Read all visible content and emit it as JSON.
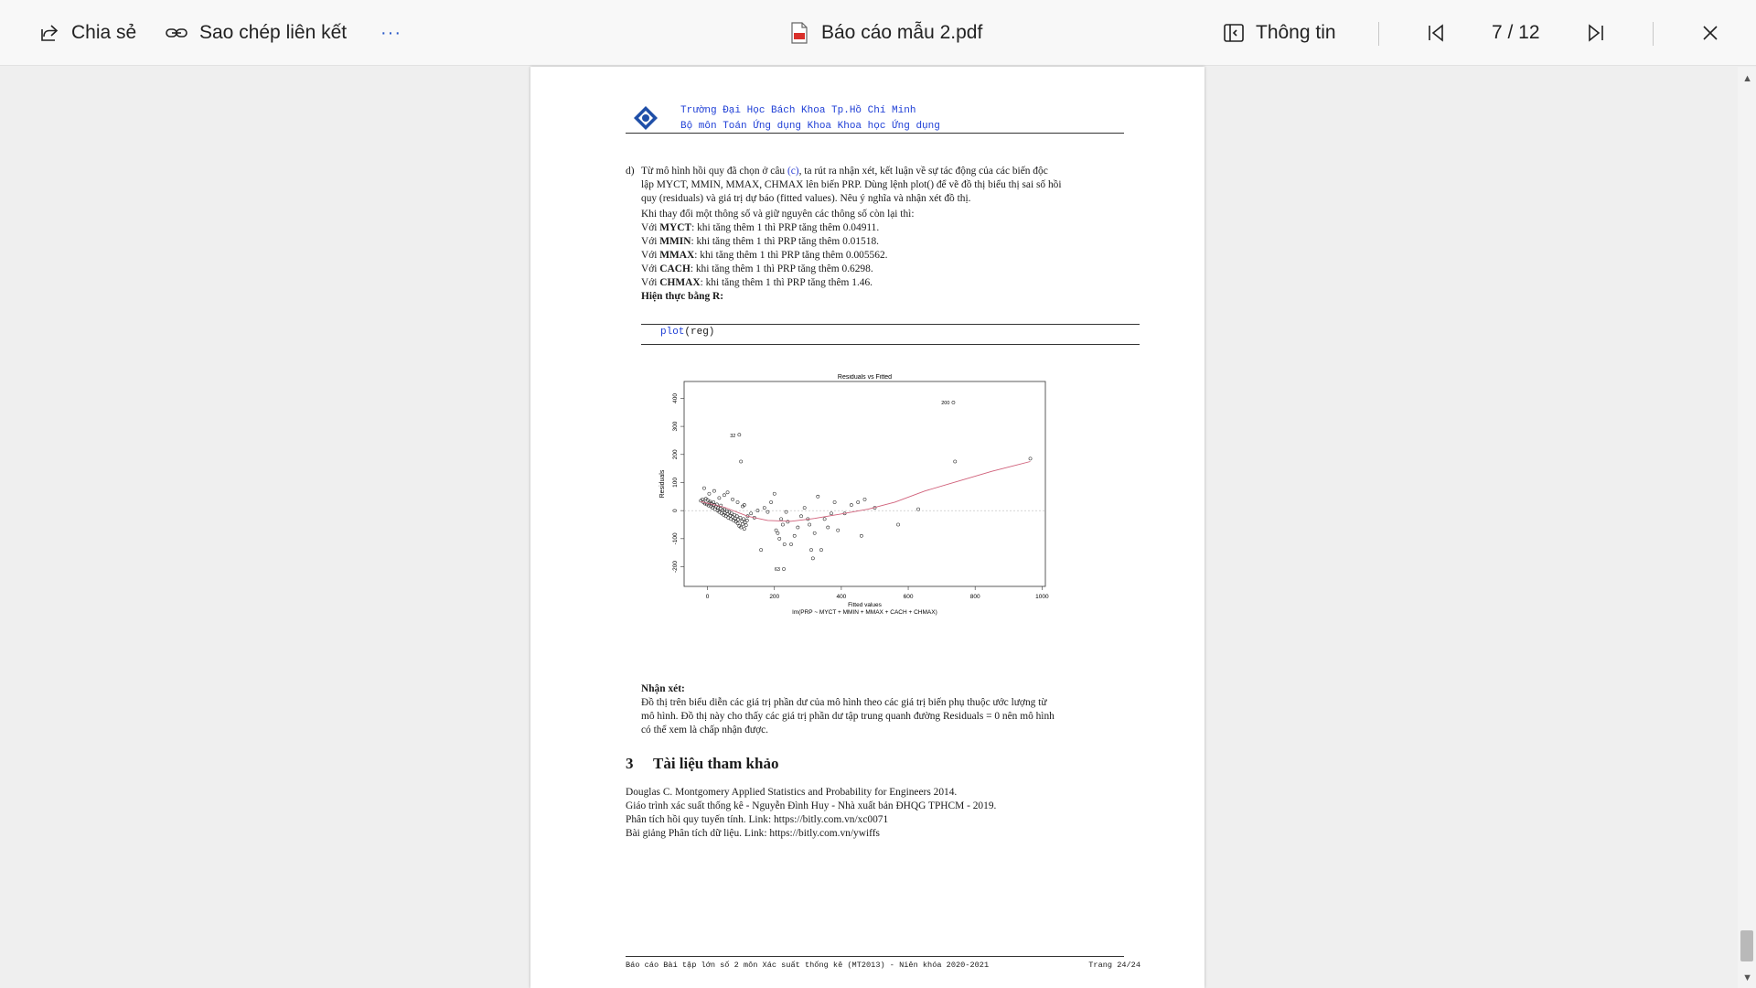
{
  "toolbar": {
    "share_label": "Chia sẻ",
    "copy_link_label": "Sao chép liên kết",
    "more_label": "···",
    "file_name": "Báo cáo mẫu 2.pdf",
    "info_label": "Thông tin",
    "page_indicator": "7 / 12"
  },
  "icons": [
    "share-icon",
    "link-icon",
    "more-icon",
    "pdf-file-icon",
    "info-panel-icon",
    "first-page-icon",
    "last-page-icon",
    "close-icon"
  ],
  "document": {
    "header": {
      "line1": "Trường Đại Học Bách Khoa Tp.Hồ Chí Minh",
      "line2": "Bộ môn Toán Ứng dụng Khoa Khoa học Ứng dụng"
    },
    "question": {
      "marker": "d)",
      "line1_pre": "Từ mô hình hồi quy đã chọn ở câu ",
      "line1_ref": "(c)",
      "line1_post": ", ta rút ra nhận xét, kết luận về sự tác động của các biến độc",
      "line2": "lập MYCT, MMIN, MMAX, CHMAX lên biến PRP. Dùng lệnh plot() để vẽ đồ thị biểu thị sai số hồi",
      "line3": "quy (residuals) và giá trị dự báo (fitted values). Nêu ý nghĩa và nhận xét đồ thị."
    },
    "answer": {
      "intro": "Khi thay đổi một thông số và giữ nguyên các thông số còn lại thì:",
      "items": [
        {
          "prefix": "Với ",
          "var": "MYCT",
          "rest": ": khi tăng thêm 1 thì PRP tăng thêm 0.04911."
        },
        {
          "prefix": "Với ",
          "var": "MMIN",
          "rest": ": khi tăng thêm 1 thì PRP tăng thêm 0.01518."
        },
        {
          "prefix": "Với ",
          "var": "MMAX",
          "rest": ": khi tăng thêm 1 thì PRP tăng thêm 0.005562."
        },
        {
          "prefix": "Với ",
          "var": "CACH",
          "rest": ": khi tăng thêm 1 thì PRP tăng thêm 0.6298."
        },
        {
          "prefix": "Với ",
          "var": "CHMAX",
          "rest": ": khi tăng thêm 1 thì PRP tăng thêm 1.46."
        }
      ],
      "impl_label": "Hiện thực bằng R:"
    },
    "code": {
      "fn": "plot",
      "args": "(reg)"
    },
    "comment": {
      "title": "Nhận xét:",
      "line1": "Đồ thị trên biểu diễn các giá trị phần dư của mô hình theo các giá trị biến phụ thuộc ước lượng từ",
      "line2": "mô hình. Đồ thị này cho thấy các giá trị phần dư tập trung quanh đường Residuals = 0 nên mô hình",
      "line3": "có thể xem là chấp nhận được."
    },
    "references": {
      "number": "3",
      "title": "Tài liệu tham khảo",
      "items": [
        "Douglas C. Montgomery Applied Statistics and Probability for Engineers 2014.",
        "Giáo trình xác suất thống kê - Nguyễn Đình Huy - Nhà xuất bản ĐHQG TPHCM - 2019.",
        "Phân tích hồi quy tuyến tính. Link: https://bitly.com.vn/xc0071",
        "Bài giảng Phân tích dữ liệu. Link: https://bitly.com.vn/ywiffs"
      ]
    },
    "footer": {
      "left": "Báo cáo Bài tập lớn số 2 môn Xác suất thống kê (MT2013) - Niên khóa 2020-2021",
      "right": "Trang 24/24"
    }
  },
  "chart_data": {
    "type": "scatter",
    "title": "Residuals vs Fitted",
    "xlabel": "Fitted values",
    "sublabel": "lm(PRP ~ MYCT + MMIN + MMAX + CACH + CHMAX)",
    "ylabel": "Residuals",
    "xlim": [
      -70,
      1010
    ],
    "ylim": [
      -270,
      460
    ],
    "xticks": [
      0,
      200,
      400,
      600,
      800,
      1000
    ],
    "yticks": [
      -200,
      -100,
      0,
      100,
      200,
      300,
      400
    ],
    "point_labels": [
      {
        "text": "200",
        "x": 735,
        "y": 385
      },
      {
        "text": "32",
        "x": 95,
        "y": 268
      },
      {
        "text": "63",
        "x": 228,
        "y": -208
      }
    ],
    "points": [
      [
        -20,
        35
      ],
      [
        -15,
        40
      ],
      [
        -12,
        30
      ],
      [
        -8,
        25
      ],
      [
        -5,
        42
      ],
      [
        -2,
        22
      ],
      [
        0,
        38
      ],
      [
        3,
        18
      ],
      [
        5,
        28
      ],
      [
        8,
        32
      ],
      [
        10,
        15
      ],
      [
        12,
        25
      ],
      [
        15,
        10
      ],
      [
        18,
        30
      ],
      [
        20,
        20
      ],
      [
        22,
        5
      ],
      [
        25,
        15
      ],
      [
        28,
        22
      ],
      [
        30,
        0
      ],
      [
        32,
        10
      ],
      [
        35,
        -5
      ],
      [
        38,
        8
      ],
      [
        40,
        18
      ],
      [
        42,
        -10
      ],
      [
        45,
        2
      ],
      [
        48,
        -15
      ],
      [
        50,
        5
      ],
      [
        52,
        -8
      ],
      [
        55,
        -20
      ],
      [
        58,
        -2
      ],
      [
        60,
        -12
      ],
      [
        62,
        -25
      ],
      [
        65,
        -5
      ],
      [
        68,
        -18
      ],
      [
        70,
        -30
      ],
      [
        72,
        -10
      ],
      [
        75,
        -22
      ],
      [
        78,
        -35
      ],
      [
        80,
        -15
      ],
      [
        82,
        -28
      ],
      [
        85,
        -40
      ],
      [
        88,
        -20
      ],
      [
        90,
        -45
      ],
      [
        92,
        -32
      ],
      [
        95,
        -55
      ],
      [
        98,
        -25
      ],
      [
        100,
        -60
      ],
      [
        103,
        -38
      ],
      [
        105,
        -48
      ],
      [
        108,
        -30
      ],
      [
        110,
        -65
      ],
      [
        112,
        -42
      ],
      [
        115,
        -52
      ],
      [
        118,
        -35
      ],
      [
        -10,
        80
      ],
      [
        5,
        60
      ],
      [
        20,
        70
      ],
      [
        35,
        45
      ],
      [
        50,
        55
      ],
      [
        60,
        65
      ],
      [
        75,
        40
      ],
      [
        90,
        30
      ],
      [
        100,
        175
      ],
      [
        95,
        270
      ],
      [
        105,
        15
      ],
      [
        110,
        20
      ],
      [
        120,
        -20
      ],
      [
        130,
        -10
      ],
      [
        140,
        -25
      ],
      [
        150,
        0
      ],
      [
        160,
        -140
      ],
      [
        170,
        10
      ],
      [
        180,
        -5
      ],
      [
        190,
        30
      ],
      [
        200,
        60
      ],
      [
        205,
        -70
      ],
      [
        210,
        -80
      ],
      [
        215,
        -100
      ],
      [
        220,
        -30
      ],
      [
        225,
        -50
      ],
      [
        230,
        -120
      ],
      [
        235,
        -5
      ],
      [
        240,
        -40
      ],
      [
        250,
        -120
      ],
      [
        260,
        -90
      ],
      [
        270,
        -60
      ],
      [
        280,
        -20
      ],
      [
        290,
        10
      ],
      [
        300,
        -30
      ],
      [
        305,
        -50
      ],
      [
        310,
        -140
      ],
      [
        315,
        -170
      ],
      [
        320,
        -80
      ],
      [
        330,
        50
      ],
      [
        340,
        -140
      ],
      [
        350,
        -30
      ],
      [
        360,
        -60
      ],
      [
        370,
        -10
      ],
      [
        380,
        30
      ],
      [
        390,
        -70
      ],
      [
        410,
        -10
      ],
      [
        430,
        20
      ],
      [
        450,
        30
      ],
      [
        460,
        -90
      ],
      [
        470,
        40
      ],
      [
        500,
        10
      ],
      [
        570,
        -50
      ],
      [
        630,
        5
      ],
      [
        740,
        175
      ],
      [
        735,
        385
      ],
      [
        965,
        185
      ],
      [
        228,
        -208
      ]
    ],
    "smooth_x": [
      -20,
      50,
      120,
      180,
      250,
      320,
      400,
      480,
      560,
      650,
      750,
      850,
      965
    ],
    "smooth_y": [
      32,
      12,
      -20,
      -35,
      -38,
      -28,
      -12,
      5,
      30,
      70,
      105,
      140,
      175
    ],
    "reference_line_y": 0
  }
}
